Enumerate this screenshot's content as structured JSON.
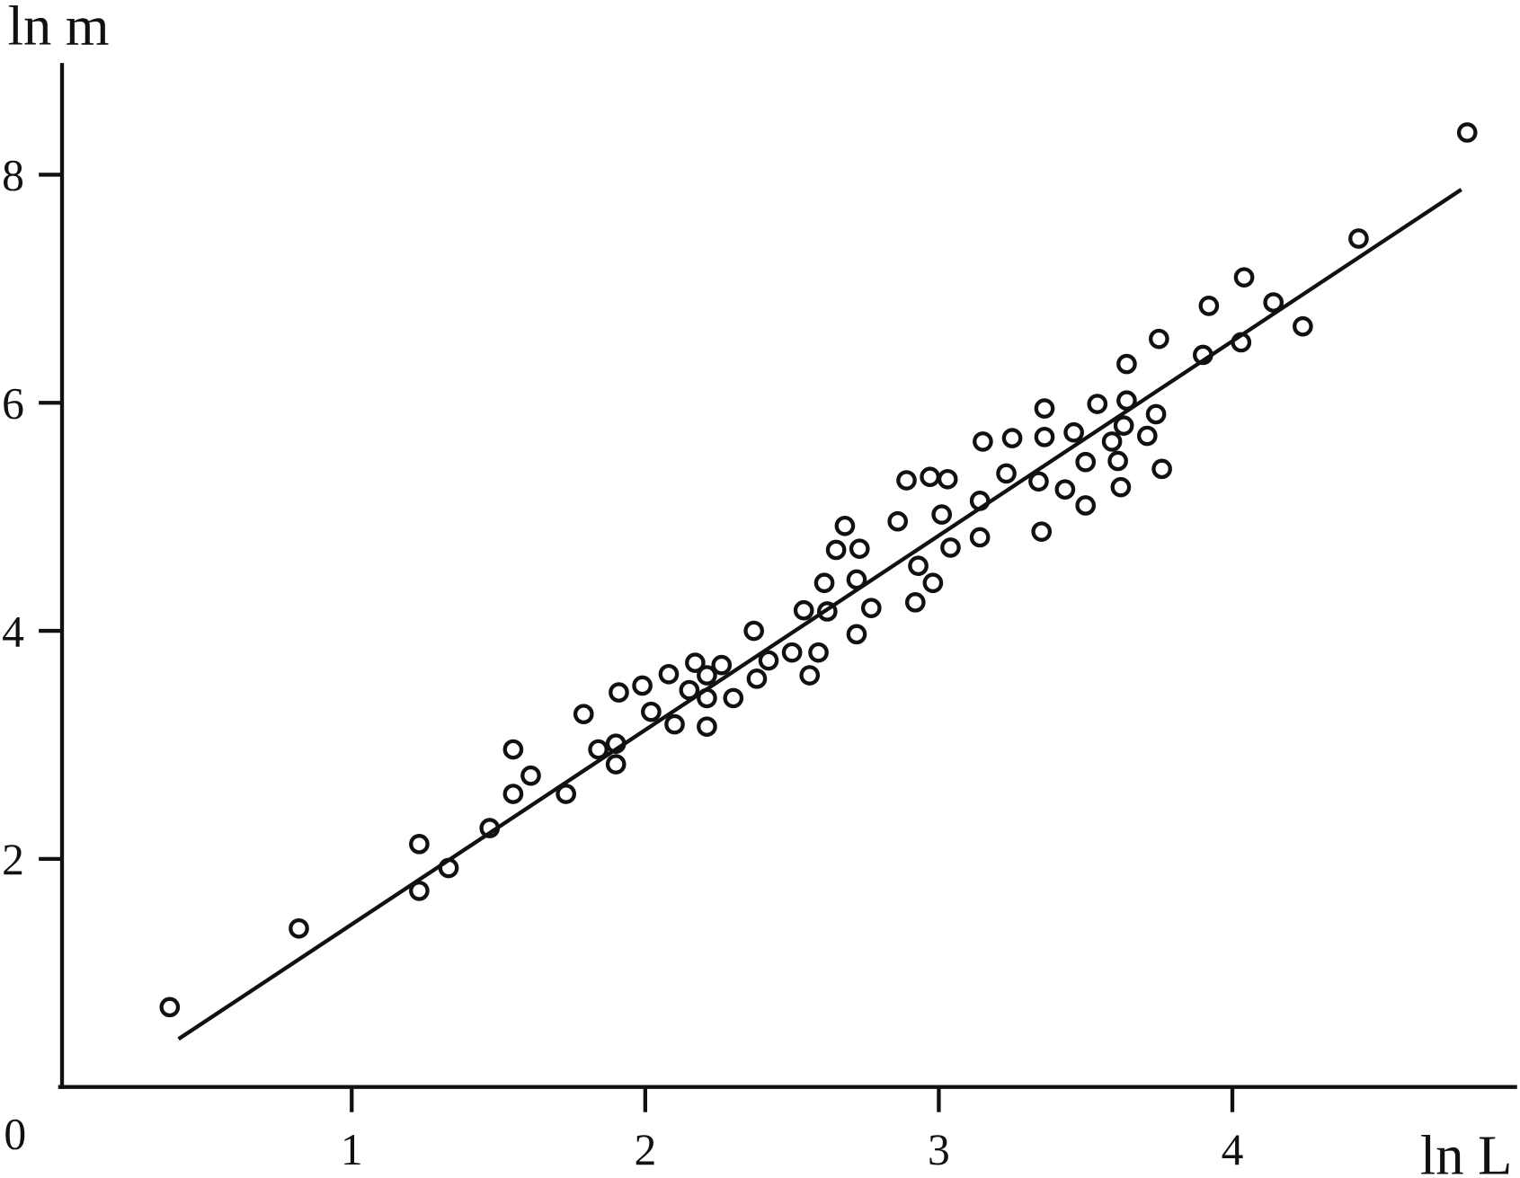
{
  "chart_data": {
    "type": "scatter",
    "x_label": "ln L",
    "y_label": "ln m",
    "origin_label": 0,
    "xlim": [
      0,
      4.97
    ],
    "ylim": [
      0,
      8.98
    ],
    "xticks": [
      1,
      2,
      3,
      4
    ],
    "yticks": [
      2,
      4,
      6,
      8
    ],
    "color": "#111111",
    "series": [
      {
        "x": [
          0.38,
          0.82,
          1.23,
          1.23,
          1.33,
          1.47,
          1.55,
          1.55,
          1.61,
          1.73,
          1.79,
          1.84,
          1.9,
          1.9,
          1.91,
          1.99,
          2.02,
          2.08,
          2.1,
          2.15,
          2.17,
          2.21,
          2.21,
          2.21,
          2.26,
          2.3,
          2.37,
          2.38,
          2.42,
          2.5,
          2.54,
          2.56,
          2.59,
          2.61,
          2.62,
          2.65,
          2.68,
          2.72,
          2.72,
          2.73,
          2.77,
          2.86,
          2.89,
          2.92,
          2.93,
          2.97,
          2.98,
          3.01,
          3.03,
          3.04,
          3.14,
          3.14,
          3.15,
          3.23,
          3.25,
          3.34,
          3.35,
          3.36,
          3.36,
          3.43,
          3.46,
          3.5,
          3.5,
          3.54,
          3.59,
          3.61,
          3.62,
          3.63,
          3.64,
          3.64,
          3.71,
          3.74,
          3.75,
          3.76,
          3.9,
          3.92,
          4.03,
          4.04,
          4.14,
          4.24,
          4.43,
          4.8
        ],
        "values": [
          0.7,
          1.39,
          2.13,
          1.72,
          1.92,
          2.27,
          2.57,
          2.96,
          2.73,
          2.57,
          3.27,
          2.96,
          2.83,
          3.01,
          3.46,
          3.52,
          3.29,
          3.62,
          3.18,
          3.48,
          3.72,
          3.41,
          3.16,
          3.61,
          3.7,
          3.41,
          4.0,
          3.58,
          3.74,
          3.81,
          4.18,
          3.61,
          3.81,
          4.42,
          4.17,
          4.71,
          4.92,
          3.97,
          4.45,
          4.72,
          4.2,
          4.96,
          5.32,
          4.25,
          4.57,
          5.35,
          4.42,
          5.02,
          5.33,
          4.73,
          5.14,
          4.82,
          5.66,
          5.38,
          5.69,
          5.31,
          4.87,
          5.7,
          5.95,
          5.24,
          5.74,
          5.1,
          5.48,
          5.99,
          5.66,
          5.49,
          5.26,
          5.8,
          6.02,
          6.34,
          5.71,
          5.9,
          6.56,
          5.42,
          6.42,
          6.85,
          6.53,
          7.1,
          6.88,
          6.67,
          7.44,
          8.37
        ]
      }
    ],
    "fit_line": {
      "x": [
        0.41,
        4.78
      ],
      "y": [
        0.42,
        7.87
      ]
    }
  }
}
